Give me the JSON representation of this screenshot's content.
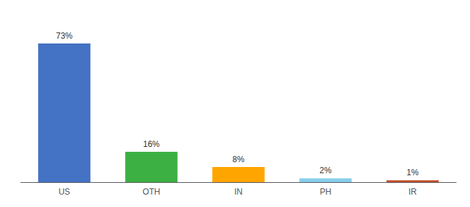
{
  "chart_data": {
    "type": "bar",
    "categories": [
      "US",
      "OTH",
      "IN",
      "PH",
      "IR"
    ],
    "values": [
      73,
      16,
      8,
      2,
      1
    ],
    "value_labels": [
      "73%",
      "16%",
      "8%",
      "2%",
      "1%"
    ],
    "colors": [
      "#4472c4",
      "#3cb043",
      "#ffa500",
      "#87ceeb",
      "#c0522a"
    ],
    "data_labels": true,
    "ylim": [
      0,
      85
    ],
    "tick_labels": "x",
    "grid": false
  }
}
